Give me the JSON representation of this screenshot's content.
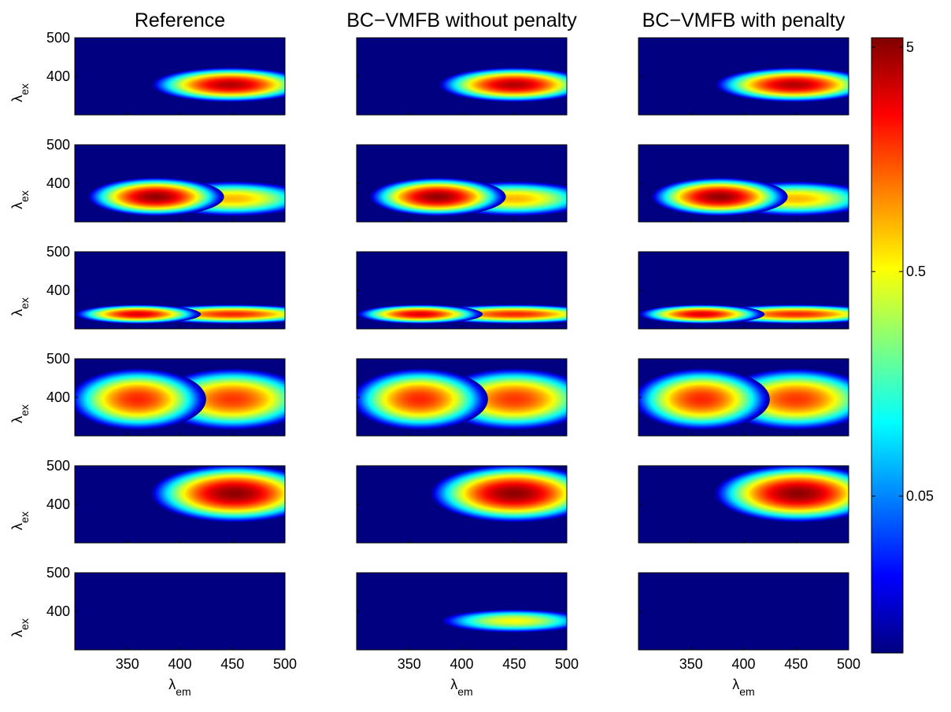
{
  "chart_data": {
    "type": "heatmap",
    "column_titles": [
      "Reference",
      "BC−VMFB without penalty",
      "BC−VMFB with penalty"
    ],
    "xlabel": {
      "symbol": "λ",
      "subscript": "em"
    },
    "ylabel": {
      "symbol": "λ",
      "subscript": "ex"
    },
    "xlim": [
      300,
      500
    ],
    "xticks": [
      350,
      400,
      450,
      500
    ],
    "ylim": [
      300,
      500
    ],
    "yticks": [
      400,
      500
    ],
    "colorbar": {
      "log": true,
      "lim": [
        0.01,
        5.5
      ],
      "ticks": [
        5,
        0.5,
        0.05
      ]
    },
    "panels": [
      [
        [
          {
            "em": 448,
            "ex": 378,
            "value": 4,
            "width": 75,
            "height": 45
          }
        ],
        [
          {
            "em": 450,
            "ex": 360,
            "value": 0.8,
            "width": 75,
            "height": 45
          },
          {
            "em": 377,
            "ex": 365,
            "value": 4.8,
            "width": 65,
            "height": 50
          }
        ],
        [
          {
            "em": 450,
            "ex": 338,
            "value": 2,
            "width": 90,
            "height": 25
          },
          {
            "em": 360,
            "ex": 338,
            "value": 3,
            "width": 60,
            "height": 25
          }
        ],
        [
          {
            "em": 450,
            "ex": 395,
            "value": 1.8,
            "width": 75,
            "height": 80
          },
          {
            "em": 360,
            "ex": 395,
            "value": 2,
            "width": 65,
            "height": 80
          }
        ],
        [
          {
            "em": 452,
            "ex": 428,
            "value": 5,
            "width": 80,
            "height": 75
          }
        ],
        []
      ],
      [
        [
          {
            "em": 450,
            "ex": 378,
            "value": 4,
            "width": 72,
            "height": 45
          }
        ],
        [
          {
            "em": 450,
            "ex": 360,
            "value": 0.8,
            "width": 75,
            "height": 45
          },
          {
            "em": 377,
            "ex": 365,
            "value": 4.8,
            "width": 65,
            "height": 50
          }
        ],
        [
          {
            "em": 450,
            "ex": 338,
            "value": 2,
            "width": 90,
            "height": 25
          },
          {
            "em": 360,
            "ex": 338,
            "value": 3,
            "width": 60,
            "height": 25
          }
        ],
        [
          {
            "em": 450,
            "ex": 395,
            "value": 1.8,
            "width": 75,
            "height": 80
          },
          {
            "em": 360,
            "ex": 395,
            "value": 2,
            "width": 65,
            "height": 80
          }
        ],
        [
          {
            "em": 450,
            "ex": 428,
            "value": 5,
            "width": 80,
            "height": 75
          }
        ],
        [
          {
            "em": 450,
            "ex": 375,
            "value": 0.5,
            "width": 70,
            "height": 30
          }
        ]
      ],
      [
        [
          {
            "em": 448,
            "ex": 378,
            "value": 4,
            "width": 75,
            "height": 45
          }
        ],
        [
          {
            "em": 450,
            "ex": 360,
            "value": 0.8,
            "width": 75,
            "height": 45
          },
          {
            "em": 377,
            "ex": 365,
            "value": 4.8,
            "width": 65,
            "height": 50
          }
        ],
        [
          {
            "em": 450,
            "ex": 338,
            "value": 2,
            "width": 90,
            "height": 25
          },
          {
            "em": 360,
            "ex": 338,
            "value": 3,
            "width": 60,
            "height": 25
          }
        ],
        [
          {
            "em": 450,
            "ex": 395,
            "value": 1.8,
            "width": 75,
            "height": 80
          },
          {
            "em": 360,
            "ex": 395,
            "value": 2,
            "width": 65,
            "height": 80
          }
        ],
        [
          {
            "em": 452,
            "ex": 428,
            "value": 5,
            "width": 80,
            "height": 75
          }
        ],
        []
      ]
    ]
  }
}
